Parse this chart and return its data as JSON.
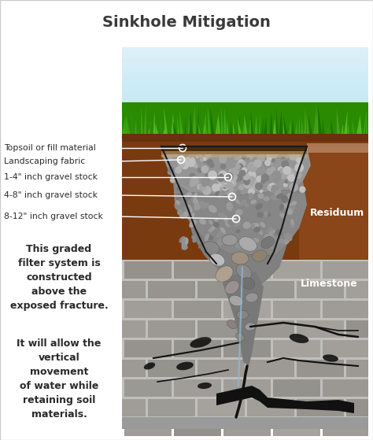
{
  "title": "Sinkhole Mitigation",
  "title_color": "#3a3a3a",
  "title_fontsize": 14,
  "bg_color": "#ffffff",
  "labels": [
    "Topsoil or fill material",
    "Landscaping fabric",
    "1-4\" inch gravel stock",
    "4-8\" inch gravel stock",
    "8-12\" inch gravel stock"
  ],
  "residuum_label": "Residuum",
  "limestone_label": "Limestone",
  "text1": "This graded\nfilter system is\nconstructed\nabove the\nexposed fracture.",
  "text2": "It will allow the\nvertical\nmovement\nof water while\nretaining soil\nmaterials.",
  "text_color": "#2a2a2a",
  "sky_color_top": "#ddf0f8",
  "sky_color_bot": "#c0e8f5",
  "grass_dark": "#2a8000",
  "grass_mid": "#3a9a10",
  "grass_light": "#55b020",
  "topsoil_color": "#7a3a10",
  "topsoil_light": "#9a5020",
  "limestone_mortar": "#c0bfbc",
  "limestone_brick": "#a8a5a0",
  "gravel_fine": "#909090",
  "gravel_med": "#808080",
  "gravel_coarse": "#787878",
  "rock_colors": [
    "#888888",
    "#999999",
    "#aaaaaa",
    "#777777",
    "#6a6a6a",
    "#b0a090"
  ],
  "crack_color": "#111111",
  "water_color": "#8ab0c8"
}
